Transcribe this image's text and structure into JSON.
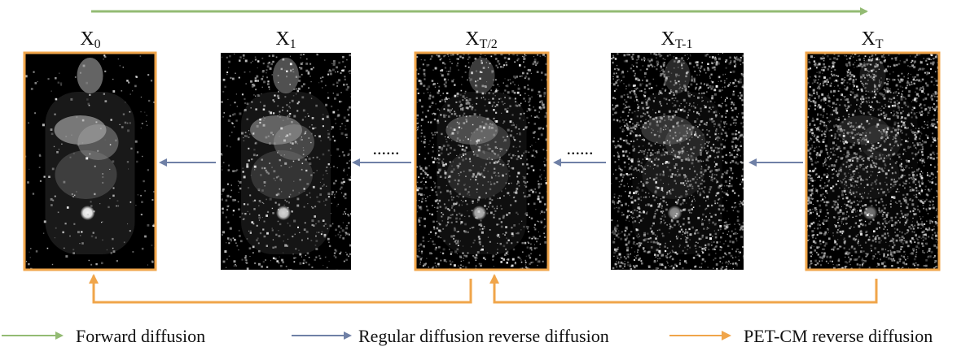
{
  "frames": [
    {
      "label": "X",
      "sub": "0",
      "highlighted": true,
      "noise": 0.04
    },
    {
      "label": "X",
      "sub": "1",
      "highlighted": false,
      "noise": 0.3
    },
    {
      "label": "X",
      "sub": "T/2",
      "highlighted": true,
      "noise": 0.55
    },
    {
      "label": "X",
      "sub": "T-1",
      "highlighted": false,
      "noise": 0.8
    },
    {
      "label": "X",
      "sub": "T",
      "highlighted": true,
      "noise": 1.0
    }
  ],
  "ellipsis": "......",
  "legend": [
    {
      "key": "forward",
      "label": "Forward diffusion",
      "color": "#93bb73"
    },
    {
      "key": "regular",
      "label": "Regular diffusion reverse diffusion",
      "color": "#6f80a6"
    },
    {
      "key": "petcm",
      "label": "PET-CM reverse diffusion",
      "color": "#f0a54a"
    }
  ],
  "colors": {
    "frame_border": "#f0a54a",
    "forward": "#93bb73",
    "regular": "#6f80a6",
    "petcm": "#f0a54a"
  }
}
